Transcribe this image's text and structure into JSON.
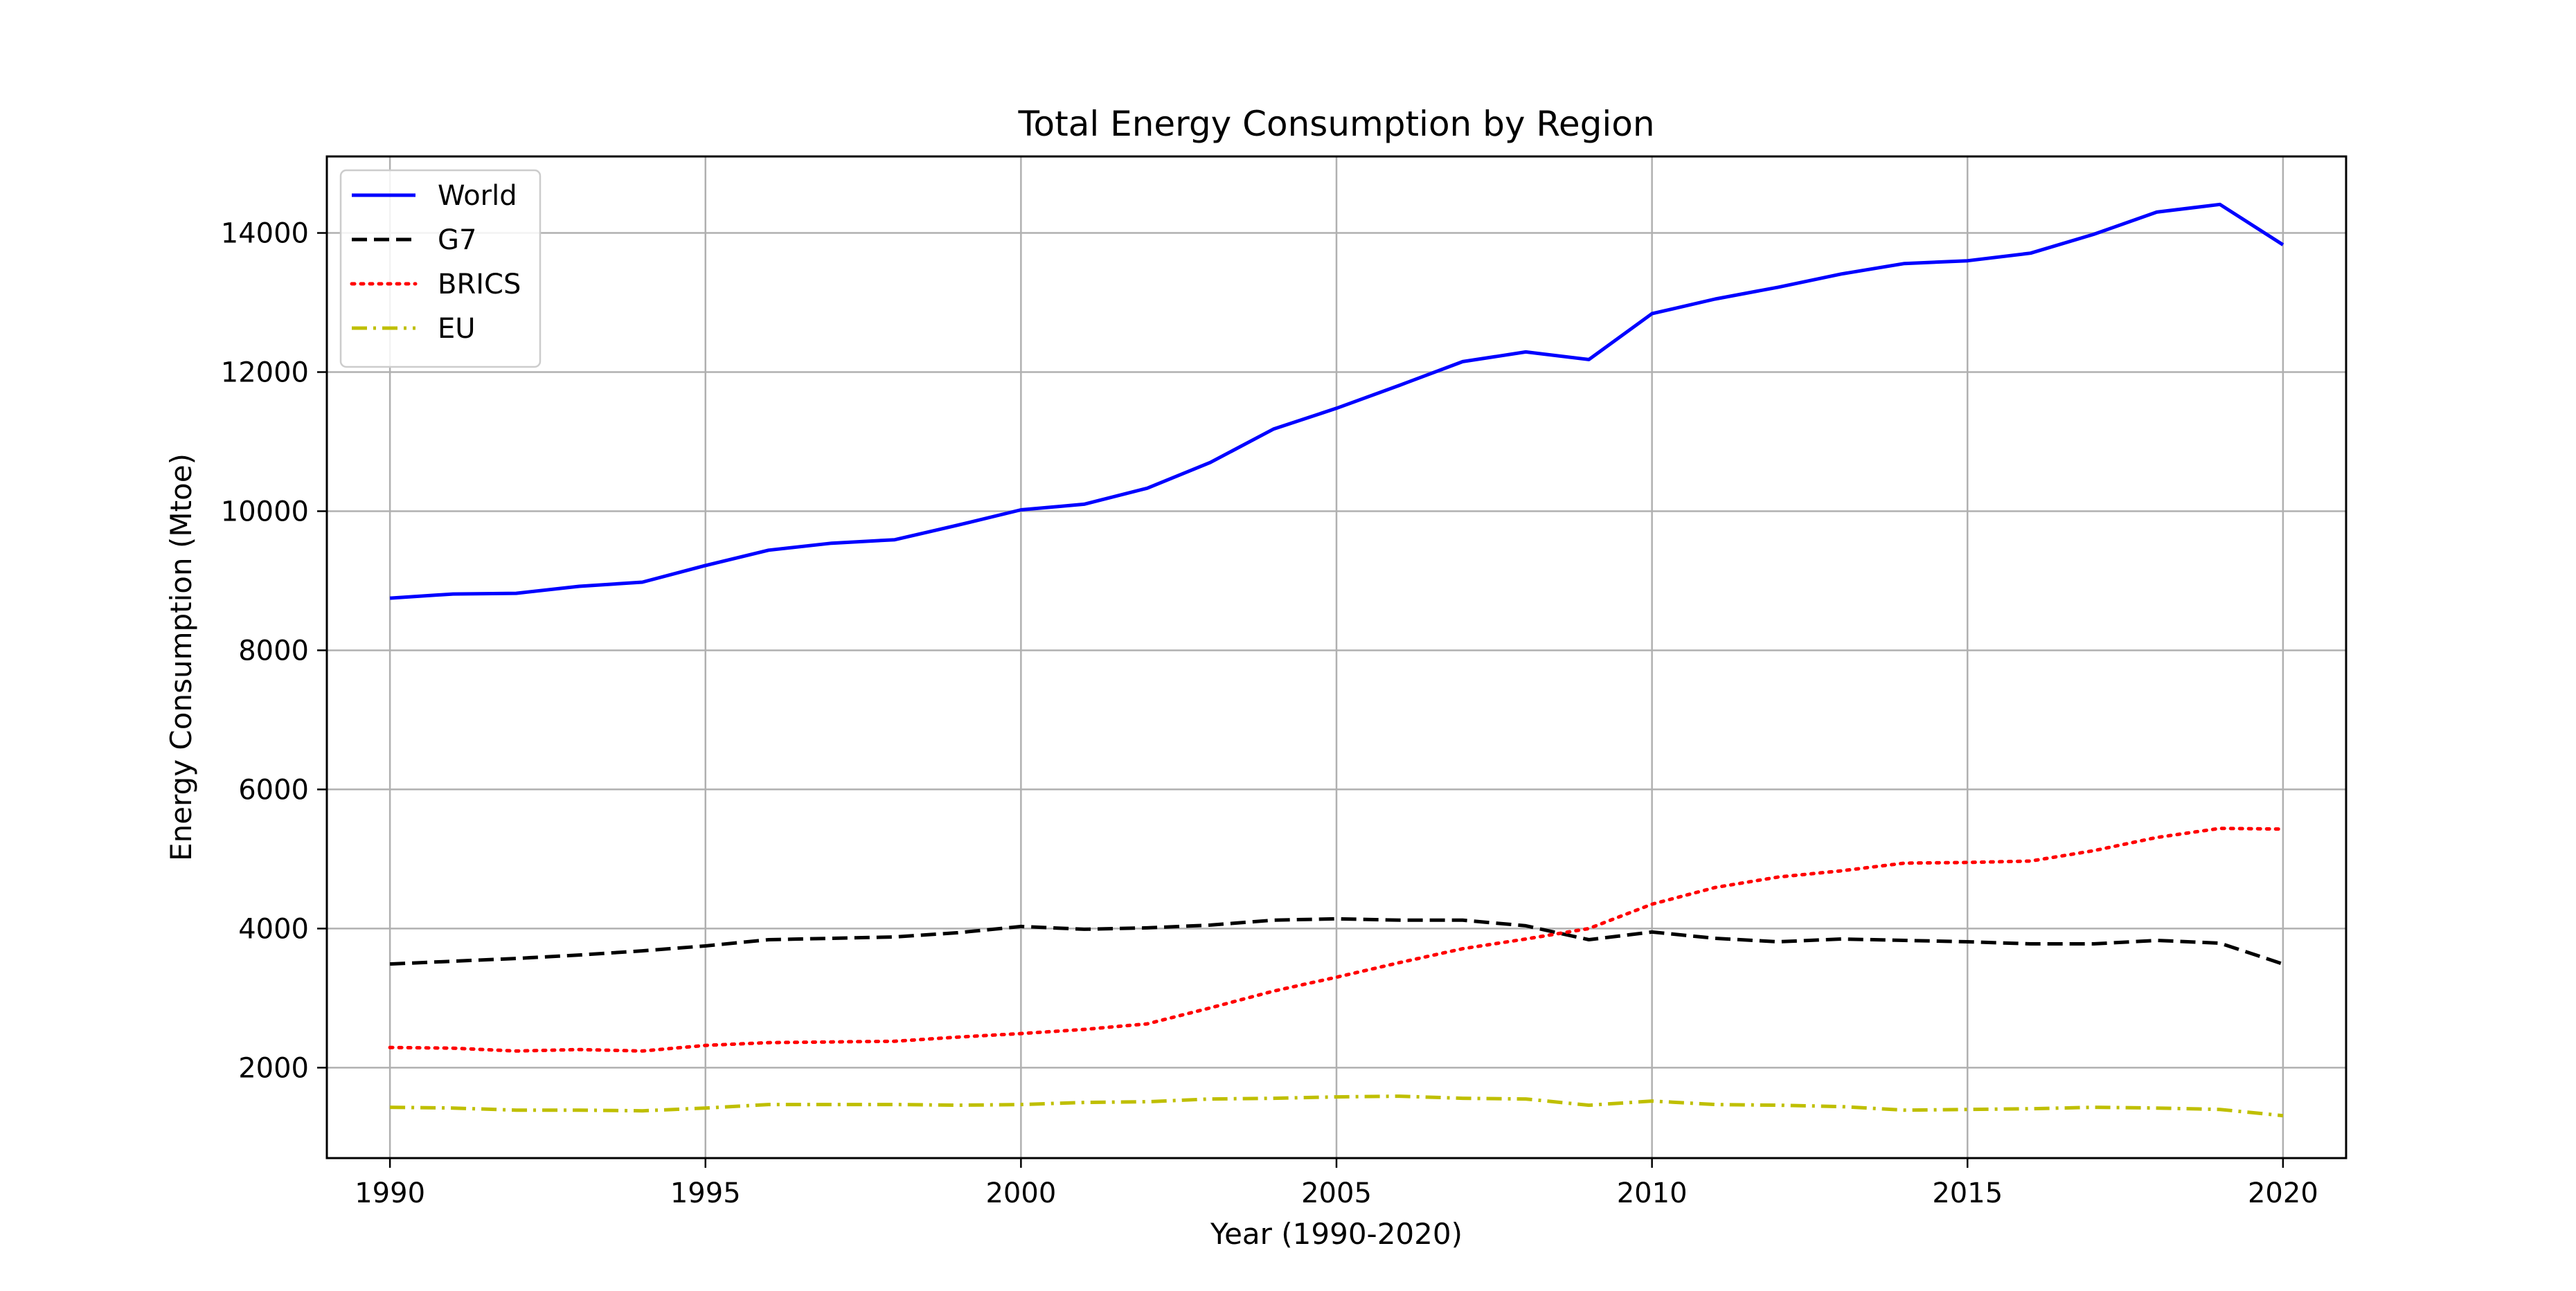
{
  "chart_data": {
    "type": "line",
    "title": "Total Energy Consumption by Region",
    "xlabel": "Year (1990-2020)",
    "ylabel": "Energy Consumption (Mtoe)",
    "xlim": [
      1989,
      2021
    ],
    "ylim": [
      700,
      15100
    ],
    "x_ticks": [
      1990,
      1995,
      2000,
      2005,
      2010,
      2015,
      2020
    ],
    "y_ticks": [
      2000,
      4000,
      6000,
      8000,
      10000,
      12000,
      14000
    ],
    "grid": true,
    "legend_position": "top-left",
    "x": [
      1990,
      1991,
      1992,
      1993,
      1994,
      1995,
      1996,
      1997,
      1998,
      1999,
      2000,
      2001,
      2002,
      2003,
      2004,
      2005,
      2006,
      2007,
      2008,
      2009,
      2010,
      2011,
      2012,
      2013,
      2014,
      2015,
      2016,
      2017,
      2018,
      2019,
      2020
    ],
    "series": [
      {
        "name": "World",
        "color": "#0000ff",
        "style": "solid",
        "values": [
          8750,
          8810,
          8820,
          8920,
          8980,
          9220,
          9440,
          9540,
          9590,
          9800,
          10020,
          10100,
          10330,
          10700,
          11180,
          11480,
          11810,
          12150,
          12290,
          12180,
          12840,
          13050,
          13220,
          13410,
          13560,
          13600,
          13710,
          13980,
          14300,
          14410,
          13830
        ]
      },
      {
        "name": "G7",
        "color": "#000000",
        "style": "dashed",
        "values": [
          3490,
          3530,
          3570,
          3620,
          3680,
          3750,
          3840,
          3860,
          3880,
          3940,
          4030,
          3990,
          4010,
          4050,
          4120,
          4140,
          4120,
          4120,
          4040,
          3840,
          3950,
          3860,
          3810,
          3850,
          3830,
          3810,
          3780,
          3780,
          3830,
          3790,
          3490
        ]
      },
      {
        "name": "BRICS",
        "color": "#ff0000",
        "style": "dotted",
        "values": [
          2290,
          2280,
          2240,
          2260,
          2240,
          2320,
          2360,
          2370,
          2380,
          2440,
          2490,
          2550,
          2630,
          2860,
          3100,
          3300,
          3510,
          3710,
          3850,
          4000,
          4350,
          4590,
          4740,
          4830,
          4940,
          4950,
          4970,
          5120,
          5310,
          5440,
          5430
        ]
      },
      {
        "name": "EU",
        "color": "#bfbf00",
        "style": "dashdot",
        "values": [
          1430,
          1420,
          1390,
          1390,
          1380,
          1420,
          1470,
          1470,
          1470,
          1460,
          1470,
          1500,
          1510,
          1550,
          1560,
          1580,
          1590,
          1560,
          1550,
          1460,
          1520,
          1470,
          1460,
          1440,
          1390,
          1400,
          1410,
          1430,
          1420,
          1400,
          1310
        ]
      }
    ]
  }
}
